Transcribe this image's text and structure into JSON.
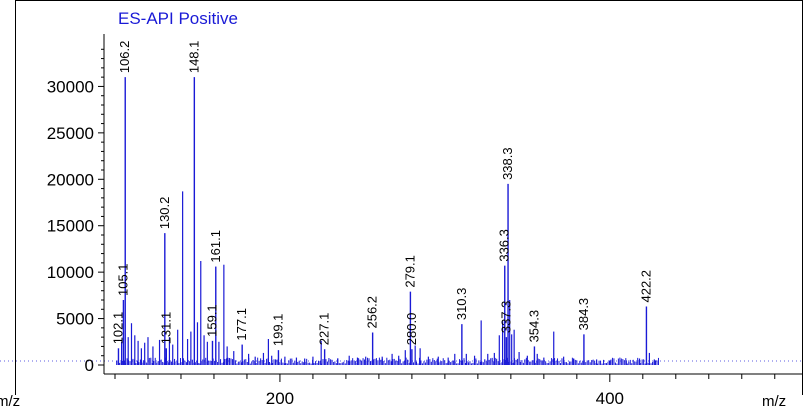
{
  "chart_data": {
    "type": "bar",
    "title": "ES-API Positive",
    "xlabel": "m/z",
    "ylabel": "",
    "xlim": [
      100,
      505
    ],
    "ylim": [
      0,
      35000
    ],
    "x_ticks": [
      200,
      400
    ],
    "y_ticks": [
      0,
      5000,
      10000,
      15000,
      20000,
      25000,
      30000
    ],
    "colors": {
      "peaks": "#1a1ad6",
      "axes": "#000000",
      "title": "#1a1ad6"
    },
    "labeled_peaks": [
      {
        "label": "102.1",
        "x": 102.1,
        "y": 1800
      },
      {
        "label": "105.1",
        "x": 105.1,
        "y": 7000
      },
      {
        "label": "106.2",
        "x": 106.2,
        "y": 31000
      },
      {
        "label": "130.2",
        "x": 130.2,
        "y": 14200
      },
      {
        "label": "131.1",
        "x": 131.1,
        "y": 1800
      },
      {
        "label": "148.1",
        "x": 148.1,
        "y": 31000
      },
      {
        "label": "159.1",
        "x": 159.1,
        "y": 2600
      },
      {
        "label": "161.1",
        "x": 161.1,
        "y": 10600
      },
      {
        "label": "177.1",
        "x": 177.1,
        "y": 2200
      },
      {
        "label": "199.1",
        "x": 199.1,
        "y": 1600
      },
      {
        "label": "227.1",
        "x": 227.1,
        "y": 1700
      },
      {
        "label": "256.2",
        "x": 256.2,
        "y": 3500
      },
      {
        "label": "279.1",
        "x": 279.1,
        "y": 7900
      },
      {
        "label": "280.0",
        "x": 280.0,
        "y": 1700
      },
      {
        "label": "310.3",
        "x": 310.3,
        "y": 4400
      },
      {
        "label": "336.3",
        "x": 336.3,
        "y": 10700
      },
      {
        "label": "337.3",
        "x": 337.3,
        "y": 3000
      },
      {
        "label": "338.3",
        "x": 338.3,
        "y": 19500
      },
      {
        "label": "354.3",
        "x": 354.3,
        "y": 2000
      },
      {
        "label": "384.3",
        "x": 384.3,
        "y": 3300
      },
      {
        "label": "422.2",
        "x": 422.2,
        "y": 6300
      }
    ],
    "other_peaks": [
      {
        "x": 104.0,
        "y": 2500
      },
      {
        "x": 108.0,
        "y": 3000
      },
      {
        "x": 110.0,
        "y": 4500
      },
      {
        "x": 112.0,
        "y": 3200
      },
      {
        "x": 114.0,
        "y": 2600
      },
      {
        "x": 116.0,
        "y": 1800
      },
      {
        "x": 118.0,
        "y": 2400
      },
      {
        "x": 120.0,
        "y": 3000
      },
      {
        "x": 123.0,
        "y": 2000
      },
      {
        "x": 127.0,
        "y": 2700
      },
      {
        "x": 133.0,
        "y": 3000
      },
      {
        "x": 135.0,
        "y": 2200
      },
      {
        "x": 138.0,
        "y": 3800
      },
      {
        "x": 141.0,
        "y": 18700
      },
      {
        "x": 144.0,
        "y": 2800
      },
      {
        "x": 146.0,
        "y": 3600
      },
      {
        "x": 150.0,
        "y": 4600
      },
      {
        "x": 152.0,
        "y": 11200
      },
      {
        "x": 154.0,
        "y": 3200
      },
      {
        "x": 156.0,
        "y": 2500
      },
      {
        "x": 163.0,
        "y": 2500
      },
      {
        "x": 166.0,
        "y": 10800
      },
      {
        "x": 168.0,
        "y": 2000
      },
      {
        "x": 172.0,
        "y": 1500
      },
      {
        "x": 181.0,
        "y": 1200
      },
      {
        "x": 185.0,
        "y": 900
      },
      {
        "x": 190.0,
        "y": 1300
      },
      {
        "x": 193.0,
        "y": 2800
      },
      {
        "x": 195.0,
        "y": 1000
      },
      {
        "x": 203.0,
        "y": 900
      },
      {
        "x": 210.0,
        "y": 800
      },
      {
        "x": 215.0,
        "y": 700
      },
      {
        "x": 220.0,
        "y": 900
      },
      {
        "x": 225.0,
        "y": 2600
      },
      {
        "x": 235.0,
        "y": 700
      },
      {
        "x": 242.0,
        "y": 1000
      },
      {
        "x": 247.0,
        "y": 800
      },
      {
        "x": 252.0,
        "y": 900
      },
      {
        "x": 262.0,
        "y": 900
      },
      {
        "x": 268.0,
        "y": 1200
      },
      {
        "x": 272.0,
        "y": 1000
      },
      {
        "x": 276.0,
        "y": 1600
      },
      {
        "x": 282.0,
        "y": 2100
      },
      {
        "x": 285.0,
        "y": 1800
      },
      {
        "x": 290.0,
        "y": 900
      },
      {
        "x": 296.0,
        "y": 900
      },
      {
        "x": 302.0,
        "y": 800
      },
      {
        "x": 306.0,
        "y": 1200
      },
      {
        "x": 313.0,
        "y": 1200
      },
      {
        "x": 318.0,
        "y": 1000
      },
      {
        "x": 322.0,
        "y": 4800
      },
      {
        "x": 326.0,
        "y": 1200
      },
      {
        "x": 330.0,
        "y": 1300
      },
      {
        "x": 333.0,
        "y": 3200
      },
      {
        "x": 335.0,
        "y": 4700
      },
      {
        "x": 339.3,
        "y": 7000
      },
      {
        "x": 340.5,
        "y": 3300
      },
      {
        "x": 342.0,
        "y": 3800
      },
      {
        "x": 345.0,
        "y": 1400
      },
      {
        "x": 350.0,
        "y": 1000
      },
      {
        "x": 356.0,
        "y": 1200
      },
      {
        "x": 360.0,
        "y": 800
      },
      {
        "x": 366.0,
        "y": 3600
      },
      {
        "x": 372.0,
        "y": 900
      },
      {
        "x": 378.0,
        "y": 700
      },
      {
        "x": 392.0,
        "y": 600
      },
      {
        "x": 400.0,
        "y": 500
      },
      {
        "x": 410.0,
        "y": 500
      },
      {
        "x": 418.0,
        "y": 700
      },
      {
        "x": 424.0,
        "y": 1300
      },
      {
        "x": 427.0,
        "y": 600
      }
    ]
  }
}
